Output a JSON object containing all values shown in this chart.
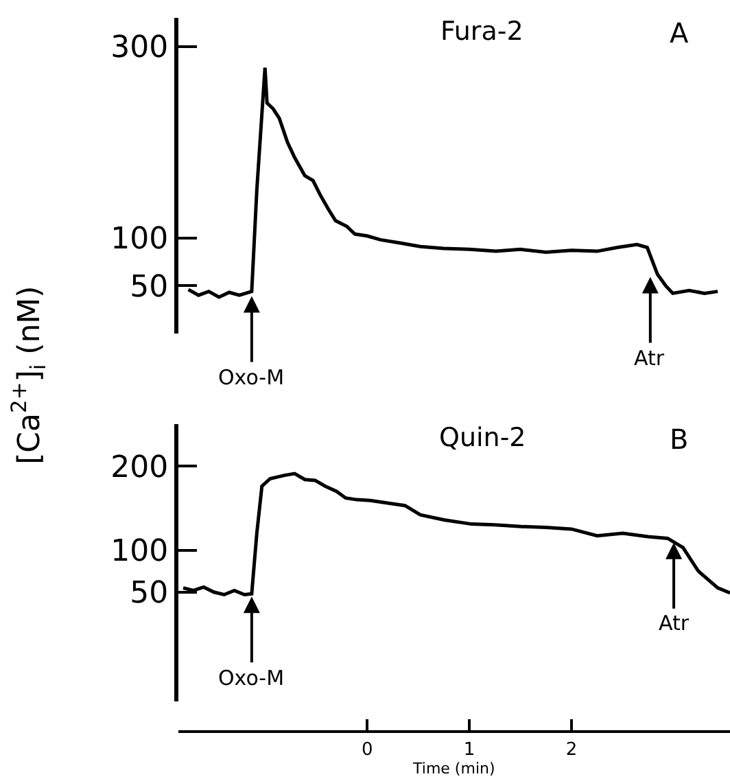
{
  "chart_data": [
    {
      "type": "line",
      "title": "Fura-2",
      "ylabel": "[Ca$^{2+}$]$_{i}$ (nM)",
      "annotations": [
        "A",
        {
          "text": "Oxo-M",
          "x": -1.13,
          "y": 42
        },
        {
          "text": "Atr",
          "x": 2.77,
          "y": 62
        }
      ],
      "xlim": [
        -1.85,
        3.55
      ],
      "ylim": [
        0,
        330
      ],
      "yticks": [
        50,
        100,
        300
      ],
      "tick_labels": "y",
      "legend": false,
      "line_style": "solid",
      "series": [
        {
          "color": "#000000",
          "x": [
            -1.75,
            -1.65,
            -1.55,
            -1.45,
            -1.35,
            -1.25,
            -1.13,
            -1.08,
            -1.0,
            -0.98,
            -0.92,
            -0.86,
            -0.78,
            -0.71,
            -0.61,
            -0.53,
            -0.46,
            -0.38,
            -0.31,
            -0.2,
            -0.12,
            0.0,
            0.13,
            0.3,
            0.52,
            0.75,
            1.0,
            1.26,
            1.5,
            1.75,
            2.0,
            2.25,
            2.45,
            2.64,
            2.74,
            2.84,
            2.92,
            2.99,
            3.15,
            3.3,
            3.43
          ],
          "values": [
            46,
            40,
            44,
            38,
            43,
            40,
            44,
            150,
            278,
            241,
            235,
            225,
            200,
            184,
            165,
            160,
            145,
            130,
            118,
            112,
            104,
            102,
            98,
            95,
            91,
            89,
            88,
            86,
            88,
            85,
            87,
            86,
            90,
            93,
            90,
            62,
            50,
            42,
            45,
            42,
            44
          ]
        }
      ]
    },
    {
      "type": "line",
      "title": "Quin-2",
      "xlabel": "Time (min)",
      "annotations": [
        "B",
        {
          "text": "Oxo-M",
          "x": -1.13,
          "y": 48
        },
        {
          "text": "Atr",
          "x": 3.0,
          "y": 112
        }
      ],
      "xlim": [
        -1.85,
        3.55
      ],
      "xticks": [
        0,
        1,
        2
      ],
      "ylim": [
        -80,
        250
      ],
      "yticks": [
        50,
        100,
        200
      ],
      "legend": false,
      "line_style": "solid",
      "series": [
        {
          "color": "#000000",
          "x": [
            -1.8,
            -1.7,
            -1.6,
            -1.5,
            -1.4,
            -1.3,
            -1.2,
            -1.13,
            -1.08,
            -1.03,
            -0.95,
            -0.81,
            -0.71,
            -0.61,
            -0.51,
            -0.41,
            -0.3,
            -0.21,
            -0.1,
            0.03,
            0.2,
            0.37,
            0.52,
            0.75,
            1.02,
            1.25,
            1.51,
            1.75,
            2.0,
            2.25,
            2.5,
            2.75,
            2.94,
            3.09,
            3.24,
            3.43,
            3.55
          ],
          "values": [
            55,
            52,
            56,
            50,
            47,
            52,
            47,
            48,
            120,
            176,
            185,
            189,
            191,
            184,
            183,
            176,
            170,
            162,
            160,
            159,
            156,
            153,
            142,
            136,
            131,
            130,
            128,
            127,
            125,
            117,
            120,
            116,
            114,
            103,
            75,
            55,
            49
          ]
        }
      ]
    }
  ]
}
